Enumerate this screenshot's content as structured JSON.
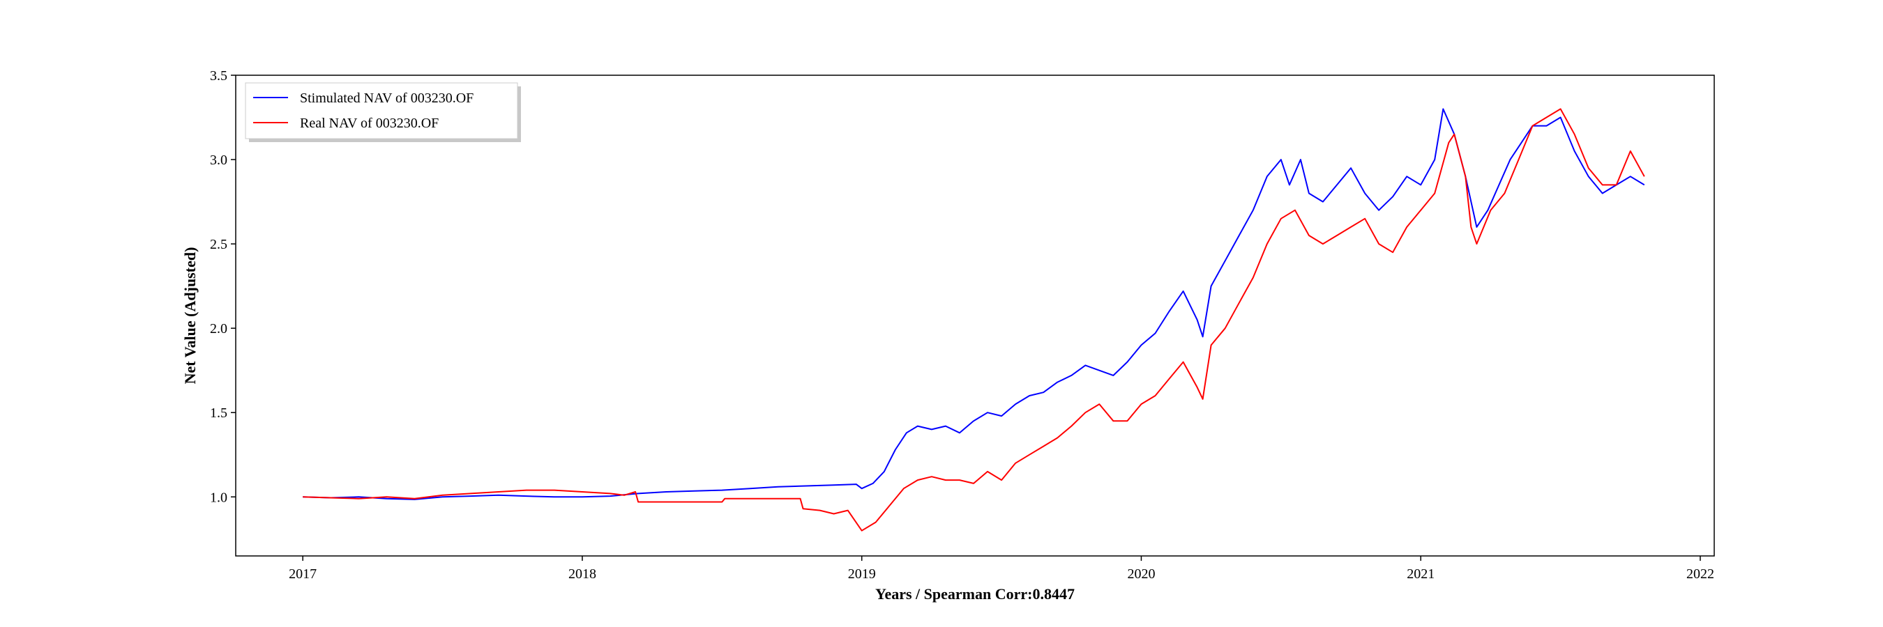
{
  "chart_data": {
    "type": "line",
    "title": "",
    "xlabel": "Years / Spearman Corr:0.8447",
    "ylabel": "Net Value (Adjusted)",
    "xlim": [
      2016.76,
      2022.05
    ],
    "ylim": [
      0.65,
      3.5
    ],
    "x_ticks": [
      2017,
      2018,
      2019,
      2020,
      2021,
      2022
    ],
    "x_tick_labels": [
      "2017",
      "2018",
      "2019",
      "2020",
      "2021",
      "2022"
    ],
    "y_ticks": [
      1.0,
      1.5,
      2.0,
      2.5,
      3.0,
      3.5
    ],
    "y_tick_labels": [
      "1.0",
      "1.5",
      "2.0",
      "2.5",
      "3.0",
      "3.5"
    ],
    "grid": false,
    "legend_position": "top-left",
    "series": [
      {
        "name": "Stimulated NAV of 003230.OF",
        "color": "#0000ff",
        "x": [
          2017.0,
          2017.1,
          2017.2,
          2017.3,
          2017.4,
          2017.5,
          2017.6,
          2017.7,
          2017.8,
          2017.9,
          2018.0,
          2018.1,
          2018.2,
          2018.3,
          2018.4,
          2018.5,
          2018.6,
          2018.7,
          2018.8,
          2018.9,
          2018.98,
          2019.0,
          2019.04,
          2019.08,
          2019.12,
          2019.16,
          2019.2,
          2019.25,
          2019.3,
          2019.35,
          2019.4,
          2019.45,
          2019.5,
          2019.55,
          2019.6,
          2019.65,
          2019.7,
          2019.75,
          2019.8,
          2019.85,
          2019.9,
          2019.95,
          2020.0,
          2020.05,
          2020.1,
          2020.15,
          2020.2,
          2020.22,
          2020.25,
          2020.3,
          2020.35,
          2020.4,
          2020.45,
          2020.5,
          2020.53,
          2020.57,
          2020.6,
          2020.65,
          2020.7,
          2020.75,
          2020.8,
          2020.85,
          2020.9,
          2020.95,
          2021.0,
          2021.05,
          2021.08,
          2021.12,
          2021.16,
          2021.2,
          2021.24,
          2021.28,
          2021.32,
          2021.36,
          2021.4,
          2021.45,
          2021.5,
          2021.55,
          2021.6,
          2021.65,
          2021.7,
          2021.75,
          2021.8
        ],
        "y": [
          1.0,
          0.995,
          1.0,
          0.99,
          0.985,
          1.0,
          1.005,
          1.01,
          1.005,
          1.0,
          1.0,
          1.005,
          1.02,
          1.03,
          1.035,
          1.04,
          1.05,
          1.06,
          1.065,
          1.07,
          1.075,
          1.05,
          1.08,
          1.15,
          1.28,
          1.38,
          1.42,
          1.4,
          1.42,
          1.38,
          1.45,
          1.5,
          1.48,
          1.55,
          1.6,
          1.62,
          1.68,
          1.72,
          1.78,
          1.75,
          1.72,
          1.8,
          1.9,
          1.97,
          2.1,
          2.22,
          2.05,
          1.95,
          2.25,
          2.4,
          2.55,
          2.7,
          2.9,
          3.0,
          2.85,
          3.0,
          2.8,
          2.75,
          2.85,
          2.95,
          2.8,
          2.7,
          2.78,
          2.9,
          2.85,
          3.0,
          3.3,
          3.15,
          2.9,
          2.6,
          2.7,
          2.85,
          3.0,
          3.1,
          3.2,
          3.2,
          3.25,
          3.05,
          2.9,
          2.8,
          2.85,
          2.9,
          2.85
        ]
      },
      {
        "name": "Real NAV of 003230.OF",
        "color": "#ff0000",
        "x": [
          2017.0,
          2017.1,
          2017.2,
          2017.3,
          2017.4,
          2017.5,
          2017.6,
          2017.7,
          2017.8,
          2017.9,
          2018.0,
          2018.1,
          2018.15,
          2018.19,
          2018.2,
          2018.5,
          2018.51,
          2018.78,
          2018.79,
          2018.85,
          2018.9,
          2018.95,
          2019.0,
          2019.05,
          2019.1,
          2019.15,
          2019.2,
          2019.25,
          2019.3,
          2019.35,
          2019.4,
          2019.45,
          2019.5,
          2019.55,
          2019.6,
          2019.65,
          2019.7,
          2019.75,
          2019.8,
          2019.85,
          2019.9,
          2019.95,
          2020.0,
          2020.05,
          2020.1,
          2020.15,
          2020.2,
          2020.22,
          2020.25,
          2020.3,
          2020.35,
          2020.4,
          2020.45,
          2020.5,
          2020.55,
          2020.6,
          2020.65,
          2020.7,
          2020.75,
          2020.8,
          2020.85,
          2020.9,
          2020.95,
          2021.0,
          2021.05,
          2021.1,
          2021.12,
          2021.16,
          2021.18,
          2021.2,
          2021.25,
          2021.3,
          2021.35,
          2021.4,
          2021.45,
          2021.5,
          2021.55,
          2021.6,
          2021.65,
          2021.7,
          2021.75,
          2021.8
        ],
        "y": [
          1.0,
          0.995,
          0.99,
          1.0,
          0.99,
          1.01,
          1.02,
          1.03,
          1.04,
          1.04,
          1.03,
          1.02,
          1.01,
          1.03,
          0.97,
          0.97,
          0.99,
          0.99,
          0.93,
          0.92,
          0.9,
          0.92,
          0.8,
          0.85,
          0.95,
          1.05,
          1.1,
          1.12,
          1.1,
          1.1,
          1.08,
          1.15,
          1.1,
          1.2,
          1.25,
          1.3,
          1.35,
          1.42,
          1.5,
          1.55,
          1.45,
          1.45,
          1.55,
          1.6,
          1.7,
          1.8,
          1.65,
          1.58,
          1.9,
          2.0,
          2.15,
          2.3,
          2.5,
          2.65,
          2.7,
          2.55,
          2.5,
          2.55,
          2.6,
          2.65,
          2.5,
          2.45,
          2.6,
          2.7,
          2.8,
          3.1,
          3.15,
          2.9,
          2.6,
          2.5,
          2.7,
          2.8,
          3.0,
          3.2,
          3.25,
          3.3,
          3.15,
          2.95,
          2.85,
          2.85,
          3.05,
          2.9
        ]
      }
    ]
  }
}
